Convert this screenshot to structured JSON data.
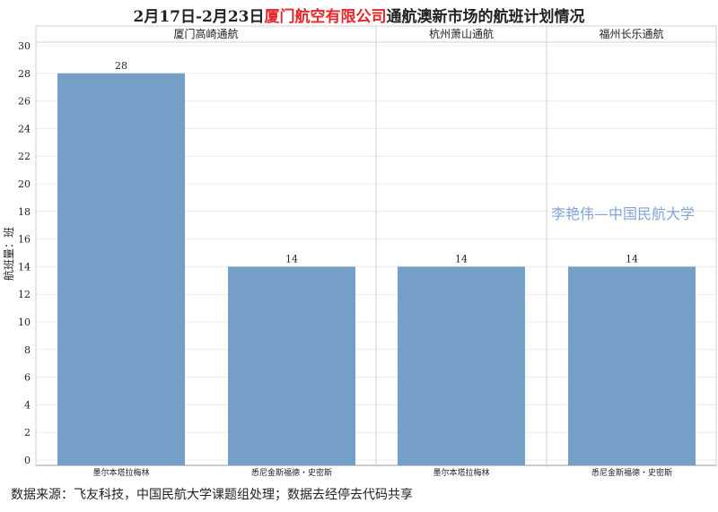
{
  "title": {
    "part1": "2月17日-2月23日",
    "highlight": "厦门航空有限公司",
    "part2": "通航澳新市场的航班计划情况"
  },
  "colors": {
    "bar": "#759fc6",
    "highlight": "#e8262a",
    "watermark": "#7fa6d6"
  },
  "watermark": "李艳伟—中国民航大学",
  "source": "数据来源：飞友科技，中国民航大学课题组处理；数据去经停去代码共享",
  "chart_data": {
    "type": "bar",
    "ylabel": "航班量：班",
    "ylim": [
      0,
      30
    ],
    "yticks": [
      0,
      2,
      4,
      6,
      8,
      10,
      12,
      14,
      16,
      18,
      20,
      22,
      24,
      26,
      28,
      30
    ],
    "grid": true,
    "panels": [
      {
        "name": "厦门高崎通航",
        "categories": [
          "墨尔本塔拉梅林",
          "悉尼金斯福德・史密斯"
        ],
        "values": [
          28,
          14
        ]
      },
      {
        "name": "杭州萧山通航",
        "categories": [
          "墨尔本塔拉梅林"
        ],
        "values": [
          14
        ]
      },
      {
        "name": "福州长乐通航",
        "categories": [
          "悉尼金斯福德・史密斯"
        ],
        "values": [
          14
        ]
      }
    ]
  }
}
